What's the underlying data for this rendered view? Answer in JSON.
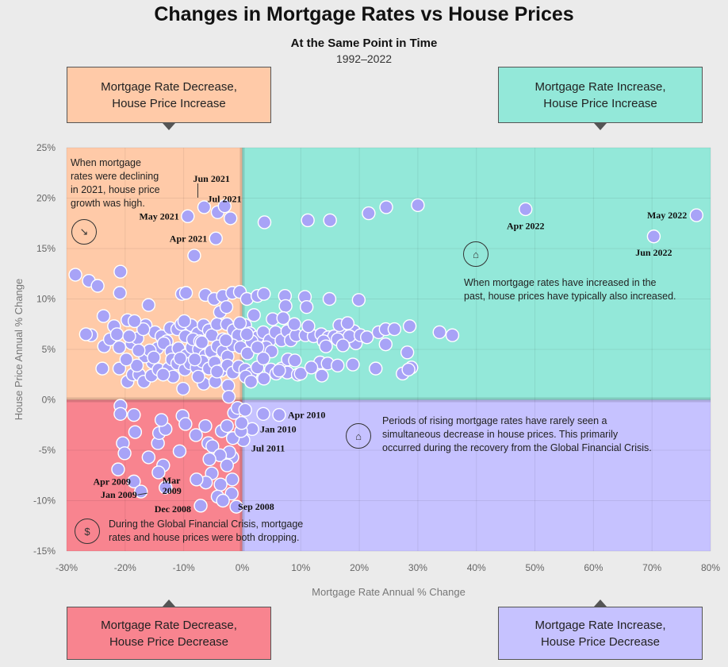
{
  "header": {
    "title": "Changes in Mortgage Rates vs House Prices",
    "subtitle": "At the Same Point in Time",
    "years": "1992–2022"
  },
  "quadrant_boxes": {
    "top_left": "Mortgage Rate Decrease,\nHouse Price Increase",
    "top_right": "Mortgage Rate Increase,\nHouse Price Increase",
    "bottom_left": "Mortgage Rate Decrease,\nHouse Price Decrease",
    "bottom_right": "Mortgage Rate Increase,\nHouse Price Decrease"
  },
  "notes": {
    "top_left": "When mortgage\nrates were declining\nin 2021, house price\ngrowth was high.",
    "top_right": "When mortgage rates have increased in the\npast, house prices have typically also increased.",
    "bottom_right": "Periods of rising mortgage rates have rarely seen a\nsimultaneous decrease in house prices. This primarily\noccurred during the recovery from the Global Financial Crisis.",
    "bottom_left": "During the Global Financial Crisis, mortgage\nrates and house prices were both dropping."
  },
  "icons": {
    "top_left": "falling-rate-chart-icon",
    "top_right": "house-growth-icon",
    "bottom_right": "house-decline-icon",
    "bottom_left": "financial-crisis-icon"
  },
  "colors": {
    "background": "#ebebeb",
    "top_left": "#ffcaa8",
    "top_right": "#93e8d9",
    "bottom_left": "#f8848f",
    "bottom_right": "#c6c2ff",
    "point_fill": "#a8a3f7",
    "point_stroke": "#ffffff"
  },
  "chart_data": {
    "type": "scatter",
    "title": "Changes in Mortgage Rates vs House Prices",
    "xlabel": "Mortgage Rate Annual % Change",
    "ylabel": "House Price Annual % Change",
    "xlim": [
      -30,
      80
    ],
    "ylim": [
      -15,
      25
    ],
    "x_ticks": [
      -30,
      -20,
      -10,
      0,
      10,
      20,
      30,
      40,
      50,
      60,
      70,
      80
    ],
    "x_tick_labels": [
      "-30%",
      "-20%",
      "-10%",
      "0%",
      "10%",
      "20%",
      "30%",
      "40%",
      "50%",
      "60%",
      "70%",
      "80%"
    ],
    "y_ticks": [
      25,
      20,
      15,
      10,
      5,
      0,
      -5,
      -10,
      -15
    ],
    "y_tick_labels": [
      "25%",
      "20%",
      "15%",
      "10%",
      "5%",
      "0%",
      "-5%",
      "-10%",
      "-15%"
    ],
    "grid": true,
    "labeled_points": [
      {
        "label": "Jun 2021",
        "x": -6.5,
        "y": 19.1
      },
      {
        "label": "Jul 2021",
        "x": -4.2,
        "y": 18.6
      },
      {
        "label": "May 2021",
        "x": -9.3,
        "y": 18.2
      },
      {
        "label": "Apr 2021",
        "x": -4.5,
        "y": 16.0
      },
      {
        "label": "Apr 2022",
        "x": 48.4,
        "y": 18.9
      },
      {
        "label": "May 2022",
        "x": 77.6,
        "y": 18.3
      },
      {
        "label": "Jun 2022",
        "x": 70.3,
        "y": 16.2
      },
      {
        "label": "Apr 2010",
        "x": 6.3,
        "y": -1.5
      },
      {
        "label": "Jan 2010",
        "x": 1.7,
        "y": -2.9
      },
      {
        "label": "Jul 2011",
        "x": 0.2,
        "y": -4.0
      },
      {
        "label": "Apr 2009",
        "x": -18.5,
        "y": -8.1
      },
      {
        "label": "Mar 2009",
        "x": -13.1,
        "y": -8.7
      },
      {
        "label": "Jan 2009",
        "x": -17.3,
        "y": -9.1
      },
      {
        "label": "Dec 2008",
        "x": -7.1,
        "y": -10.5
      },
      {
        "label": "Sep 2008",
        "x": -1.0,
        "y": -10.6
      }
    ],
    "points": [
      [
        -6.5,
        19.1
      ],
      [
        -4.2,
        18.6
      ],
      [
        -9.3,
        18.2
      ],
      [
        -4.5,
        16.0
      ],
      [
        48.4,
        18.9
      ],
      [
        77.6,
        18.3
      ],
      [
        70.3,
        16.2
      ],
      [
        6.3,
        -1.5
      ],
      [
        1.7,
        -2.9
      ],
      [
        0.2,
        -4.0
      ],
      [
        -18.5,
        -8.1
      ],
      [
        -13.1,
        -8.7
      ],
      [
        -17.3,
        -9.1
      ],
      [
        -7.1,
        -10.5
      ],
      [
        -1.0,
        -10.6
      ],
      [
        -3.0,
        19.2
      ],
      [
        -2.0,
        18.0
      ],
      [
        -8.2,
        14.3
      ],
      [
        3.8,
        17.6
      ],
      [
        11.2,
        17.8
      ],
      [
        15.0,
        17.8
      ],
      [
        21.6,
        18.5
      ],
      [
        24.6,
        19.1
      ],
      [
        30.0,
        19.3
      ],
      [
        -28.5,
        12.4
      ],
      [
        -26.2,
        11.8
      ],
      [
        -24.7,
        11.3
      ],
      [
        -20.8,
        12.7
      ],
      [
        -20.9,
        10.6
      ],
      [
        -16.0,
        9.4
      ],
      [
        -10.3,
        10.5
      ],
      [
        -9.6,
        10.6
      ],
      [
        -6.3,
        10.4
      ],
      [
        -4.8,
        10.0
      ],
      [
        -3.3,
        10.3
      ],
      [
        -1.7,
        10.6
      ],
      [
        -0.4,
        10.7
      ],
      [
        0.8,
        10.0
      ],
      [
        2.6,
        10.3
      ],
      [
        3.7,
        10.5
      ],
      [
        7.3,
        10.3
      ],
      [
        7.4,
        9.3
      ],
      [
        10.7,
        10.2
      ],
      [
        11.0,
        9.2
      ],
      [
        14.9,
        10.0
      ],
      [
        19.9,
        9.9
      ],
      [
        19.1,
        6.8
      ],
      [
        19.4,
        5.6
      ],
      [
        23.3,
        6.7
      ],
      [
        24.5,
        7.0
      ],
      [
        26.0,
        7.0
      ],
      [
        28.6,
        7.3
      ],
      [
        33.7,
        6.7
      ],
      [
        35.9,
        6.4
      ],
      [
        22.8,
        3.1
      ],
      [
        24.5,
        5.5
      ],
      [
        27.4,
        2.6
      ],
      [
        28.2,
        4.7
      ],
      [
        28.9,
        3.2
      ],
      [
        28.4,
        3.0
      ],
      [
        -25.8,
        6.4
      ],
      [
        -23.6,
        5.3
      ],
      [
        -22.6,
        6.0
      ],
      [
        -21.9,
        7.3
      ],
      [
        -21.4,
        6.5
      ],
      [
        -21.0,
        5.2
      ],
      [
        -23.7,
        8.3
      ],
      [
        -23.9,
        3.1
      ],
      [
        -21.0,
        3.1
      ],
      [
        -19.6,
        1.8
      ],
      [
        -18.7,
        2.5
      ],
      [
        -17.6,
        2.5
      ],
      [
        -16.8,
        1.8
      ],
      [
        -15.5,
        2.4
      ],
      [
        -15.3,
        3.7
      ],
      [
        -16.6,
        4.3
      ],
      [
        -18.0,
        3.4
      ],
      [
        -19.8,
        4.0
      ],
      [
        -18.9,
        5.6
      ],
      [
        -17.9,
        6.1
      ],
      [
        -16.5,
        7.4
      ],
      [
        -14.9,
        6.7
      ],
      [
        -13.8,
        6.3
      ],
      [
        -12.9,
        5.8
      ],
      [
        -12.3,
        7.1
      ],
      [
        -11.1,
        7.0
      ],
      [
        -10.4,
        7.5
      ],
      [
        -9.7,
        6.3
      ],
      [
        -8.7,
        7.4
      ],
      [
        -7.6,
        6.6
      ],
      [
        -6.6,
        7.4
      ],
      [
        -5.7,
        6.9
      ],
      [
        -5.2,
        6.4
      ],
      [
        -4.3,
        7.5
      ],
      [
        -3.3,
        6.0
      ],
      [
        -2.6,
        7.5
      ],
      [
        -1.5,
        6.9
      ],
      [
        -0.7,
        6.4
      ],
      [
        0.5,
        7.4
      ],
      [
        1.3,
        6.6
      ],
      [
        2.6,
        6.2
      ],
      [
        3.6,
        6.7
      ],
      [
        4.7,
        5.9
      ],
      [
        5.7,
        6.7
      ],
      [
        6.7,
        5.9
      ],
      [
        7.7,
        6.8
      ],
      [
        8.3,
        5.9
      ],
      [
        9.2,
        6.4
      ],
      [
        10.8,
        6.4
      ],
      [
        12.2,
        6.3
      ],
      [
        13.5,
        6.5
      ],
      [
        14.7,
        6.2
      ],
      [
        15.7,
        6.3
      ],
      [
        17.1,
        6.4
      ],
      [
        18.3,
        6.3
      ],
      [
        20.2,
        6.4
      ],
      [
        21.3,
        6.2
      ],
      [
        13.9,
        5.8
      ],
      [
        14.3,
        5.3
      ],
      [
        -14.5,
        5.1
      ],
      [
        -15.8,
        4.9
      ],
      [
        -13.4,
        5.6
      ],
      [
        -12.1,
        4.8
      ],
      [
        -10.9,
        5.1
      ],
      [
        -9.6,
        4.4
      ],
      [
        -8.6,
        5.2
      ],
      [
        -7.4,
        5.0
      ],
      [
        -6.3,
        4.4
      ],
      [
        -5.3,
        4.8
      ],
      [
        -4.2,
        5.3
      ],
      [
        -3.3,
        4.8
      ],
      [
        -2.5,
        4.3
      ],
      [
        -1.6,
        5.4
      ],
      [
        -0.3,
        5.2
      ],
      [
        0.9,
        4.6
      ],
      [
        1.6,
        5.8
      ],
      [
        4.1,
        5.2
      ],
      [
        5.0,
        4.8
      ],
      [
        -16.9,
        7.0
      ],
      [
        -17.7,
        4.9
      ],
      [
        -15.1,
        4.2
      ],
      [
        -14.3,
        3.0
      ],
      [
        -12.6,
        3.1
      ],
      [
        -12.0,
        4.0
      ],
      [
        -11.1,
        3.6
      ],
      [
        -9.8,
        3.0
      ],
      [
        -8.9,
        3.6
      ],
      [
        -7.8,
        3.2
      ],
      [
        -6.8,
        3.8
      ],
      [
        -5.7,
        3.1
      ],
      [
        -4.7,
        3.7
      ],
      [
        -3.6,
        2.9
      ],
      [
        -2.5,
        3.4
      ],
      [
        -1.6,
        2.7
      ],
      [
        -0.6,
        3.3
      ],
      [
        0.5,
        3.0
      ],
      [
        1.5,
        2.6
      ],
      [
        2.6,
        3.2
      ],
      [
        4.9,
        3.0
      ],
      [
        5.8,
        2.6
      ],
      [
        6.7,
        3.1
      ],
      [
        7.7,
        2.7
      ],
      [
        9.5,
        2.5
      ],
      [
        10.0,
        2.6
      ],
      [
        13.3,
        3.7
      ],
      [
        13.6,
        2.4
      ],
      [
        14.6,
        3.6
      ],
      [
        16.3,
        3.4
      ],
      [
        18.9,
        3.5
      ],
      [
        -10.1,
        1.1
      ],
      [
        -6.6,
        1.6
      ],
      [
        -4.6,
        1.8
      ],
      [
        -2.4,
        1.4
      ],
      [
        -2.3,
        0.3
      ],
      [
        0.6,
        2.3
      ],
      [
        1.5,
        1.8
      ],
      [
        -20.8,
        -0.6
      ],
      [
        -20.8,
        -1.4
      ],
      [
        -18.5,
        -1.5
      ],
      [
        -18.3,
        -3.2
      ],
      [
        -20.4,
        -4.3
      ],
      [
        -20.1,
        -5.3
      ],
      [
        -21.2,
        -6.9
      ],
      [
        -16.0,
        -5.7
      ],
      [
        -14.4,
        -4.3
      ],
      [
        -14.2,
        -3.3
      ],
      [
        -13.1,
        -2.9
      ],
      [
        -13.8,
        -2.0
      ],
      [
        -13.5,
        -6.5
      ],
      [
        -14.3,
        -7.2
      ],
      [
        -10.7,
        -5.1
      ],
      [
        -10.2,
        -1.6
      ],
      [
        -9.7,
        -2.4
      ],
      [
        -7.9,
        -3.5
      ],
      [
        -6.3,
        -2.6
      ],
      [
        -5.8,
        -4.3
      ],
      [
        -5.1,
        -4.6
      ],
      [
        -3.5,
        -3.1
      ],
      [
        -2.6,
        -2.6
      ],
      [
        -1.6,
        -3.8
      ],
      [
        -0.2,
        -3.1
      ],
      [
        -0.1,
        -2.3
      ],
      [
        -1.4,
        -1.3
      ],
      [
        -1.7,
        -5.7
      ],
      [
        -2.2,
        -5.2
      ],
      [
        -3.8,
        -5.5
      ],
      [
        -5.6,
        -5.9
      ],
      [
        -5.2,
        -7.3
      ],
      [
        -6.2,
        -8.2
      ],
      [
        -7.8,
        -7.9
      ],
      [
        -2.6,
        -6.5
      ],
      [
        -1.7,
        -7.9
      ],
      [
        -1.8,
        -9.3
      ],
      [
        -3.7,
        -8.4
      ],
      [
        -4.2,
        -9.6
      ],
      [
        -3.3,
        -10.0
      ],
      [
        -0.8,
        -0.8
      ],
      [
        0.5,
        -1.0
      ],
      [
        3.6,
        -1.4
      ],
      [
        -26.7,
        6.5
      ],
      [
        -8.4,
        6.0
      ],
      [
        -7.2,
        5.8
      ],
      [
        -2.8,
        5.9
      ],
      [
        -0.4,
        7.6
      ],
      [
        2.0,
        8.4
      ],
      [
        5.2,
        8.0
      ],
      [
        7.0,
        8.1
      ],
      [
        8.9,
        7.5
      ],
      [
        11.3,
        7.3
      ],
      [
        16.6,
        7.4
      ],
      [
        18.0,
        7.6
      ],
      [
        -19.3,
        6.3
      ],
      [
        -19.6,
        7.9
      ],
      [
        -18.4,
        7.8
      ],
      [
        -9.9,
        7.8
      ],
      [
        -3.8,
        8.7
      ],
      [
        -2.7,
        9.2
      ],
      [
        0.8,
        6.5
      ],
      [
        2.6,
        5.2
      ],
      [
        3.6,
        4.1
      ],
      [
        7.8,
        4.0
      ],
      [
        9.0,
        3.9
      ],
      [
        11.8,
        3.2
      ],
      [
        16.3,
        6.0
      ],
      [
        17.2,
        5.4
      ],
      [
        -6.9,
        5.7
      ],
      [
        -8.1,
        4.0
      ],
      [
        -10.6,
        4.1
      ],
      [
        -11.8,
        2.3
      ],
      [
        -13.5,
        2.5
      ],
      [
        -7.5,
        2.3
      ],
      [
        -4.3,
        2.8
      ],
      [
        3.7,
        2.1
      ],
      [
        6.3,
        2.9
      ]
    ]
  }
}
